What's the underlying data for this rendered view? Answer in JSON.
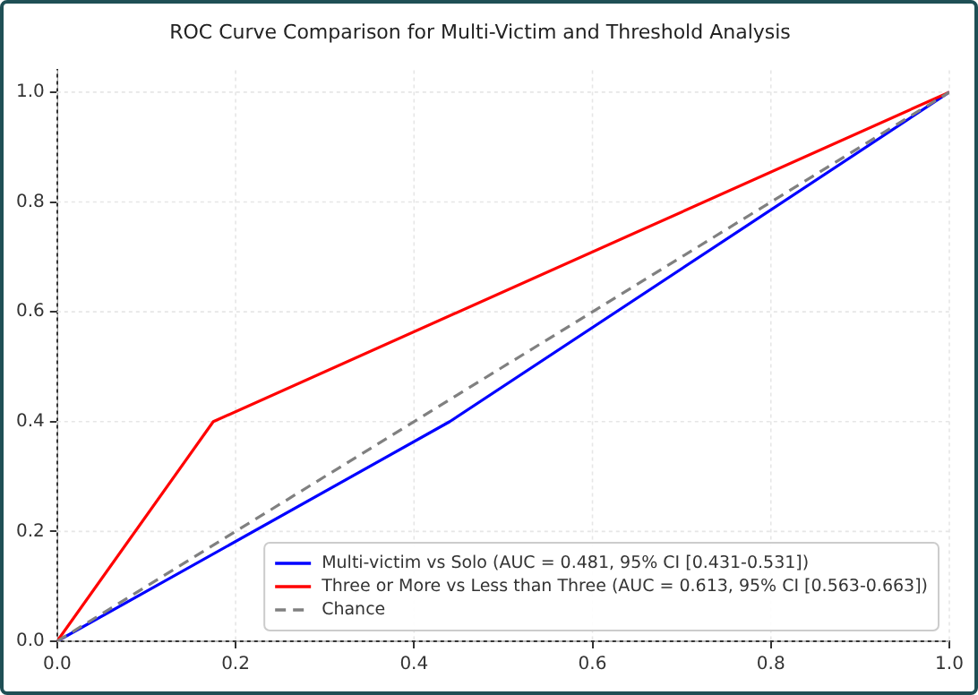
{
  "chart_data": {
    "type": "line",
    "title": "ROC Curve Comparison for Multi-Victim and Threshold Analysis",
    "series": [
      {
        "name": "Multi-victim vs Solo (AUC = 0.481, 95% CI [0.431-0.531])",
        "color": "#0000ff",
        "x": [
          0,
          0.44,
          1
        ],
        "values": [
          0,
          0.4,
          1
        ]
      },
      {
        "name": "Three or More vs Less than Three (AUC = 0.613, 95% CI [0.563-0.663])",
        "color": "#ff0000",
        "x": [
          0,
          0.175,
          1
        ],
        "values": [
          0,
          0.4,
          1
        ]
      },
      {
        "name": "Chance",
        "color": "#808080",
        "x": [
          0,
          1
        ],
        "values": [
          0,
          1
        ],
        "line_style": "dashed"
      }
    ],
    "xlim": [
      0,
      1
    ],
    "ylim": [
      0,
      1.04
    ],
    "xticks": [
      {
        "value": 0,
        "label": "0.0"
      },
      {
        "value": 0.2,
        "label": "0.2"
      },
      {
        "value": 0.4,
        "label": "0.4"
      },
      {
        "value": 0.6,
        "label": "0.6"
      },
      {
        "value": 0.8,
        "label": "0.8"
      },
      {
        "value": 1,
        "label": "1.0"
      }
    ],
    "yticks": [
      {
        "value": 0,
        "label": "0.0"
      },
      {
        "value": 0.2,
        "label": "0.2"
      },
      {
        "value": 0.4,
        "label": "0.4"
      },
      {
        "value": 0.6,
        "label": "0.6"
      },
      {
        "value": 0.8,
        "label": "0.8"
      },
      {
        "value": 1,
        "label": "1.0"
      }
    ],
    "grid": true,
    "legend": "bottom right",
    "marker": "none"
  }
}
